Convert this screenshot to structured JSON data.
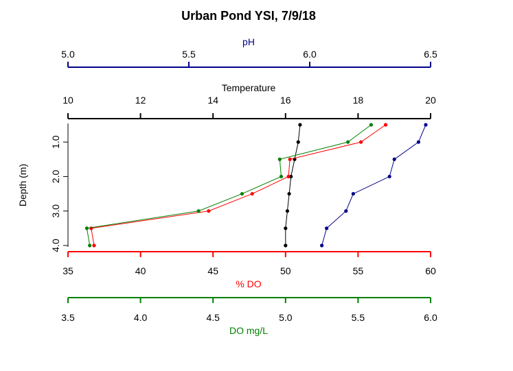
{
  "chart_data": {
    "type": "line",
    "title": "Urban Pond YSI, 7/9/18",
    "ylabel": "Depth (m)",
    "ylim": [
      4.0,
      0.5
    ],
    "y_ticks": [
      "1.0",
      "2.0",
      "3.0",
      "4.0"
    ],
    "axes": {
      "ph": {
        "label": "pH",
        "color": "#00008B",
        "position": "top",
        "range": [
          5.0,
          6.5
        ],
        "ticks": [
          5.0,
          5.5,
          6.0,
          6.5
        ],
        "tick_labels": [
          "5.0",
          "5.5",
          "6.0",
          "6.5"
        ]
      },
      "temperature": {
        "label": "Temperature",
        "color": "#000000",
        "position": "top",
        "range": [
          10,
          20
        ],
        "ticks": [
          10,
          12,
          14,
          16,
          18,
          20
        ],
        "tick_labels": [
          "10",
          "12",
          "14",
          "16",
          "18",
          "20"
        ]
      },
      "do_pct": {
        "label": "% DO",
        "color": "#FF0000",
        "position": "bottom",
        "range": [
          35,
          60
        ],
        "ticks": [
          35,
          40,
          45,
          50,
          55,
          60
        ],
        "tick_labels": [
          "35",
          "40",
          "45",
          "50",
          "55",
          "60"
        ]
      },
      "do_mgl": {
        "label": "DO mg/L",
        "color": "#008000",
        "position": "bottom",
        "range": [
          3.5,
          6.0
        ],
        "ticks": [
          3.5,
          4.0,
          4.5,
          5.0,
          5.5,
          6.0
        ],
        "tick_labels": [
          "3.5",
          "4.0",
          "4.5",
          "5.0",
          "5.5",
          "6.0"
        ]
      }
    },
    "series": [
      {
        "axis": "temperature",
        "color": "#000000",
        "points": [
          [
            16.4,
            0.5
          ],
          [
            16.35,
            1.0
          ],
          [
            16.25,
            1.5
          ],
          [
            16.15,
            2.0
          ],
          [
            16.1,
            2.5
          ],
          [
            16.05,
            3.0
          ],
          [
            16.0,
            3.5
          ],
          [
            16.0,
            4.0
          ]
        ]
      },
      {
        "axis": "do_pct",
        "color": "#FF0000",
        "points": [
          [
            56.9,
            0.5
          ],
          [
            55.2,
            1.0
          ],
          [
            50.3,
            1.5
          ],
          [
            50.2,
            2.0
          ],
          [
            47.7,
            2.5
          ],
          [
            44.7,
            3.0
          ],
          [
            36.6,
            3.5
          ],
          [
            36.8,
            4.0
          ]
        ]
      },
      {
        "axis": "do_mgl",
        "color": "#008000",
        "points": [
          [
            5.59,
            0.5
          ],
          [
            5.43,
            1.0
          ],
          [
            4.96,
            1.5
          ],
          [
            4.97,
            2.0
          ],
          [
            4.7,
            2.5
          ],
          [
            4.4,
            3.0
          ],
          [
            3.63,
            3.5
          ],
          [
            3.65,
            4.0
          ]
        ]
      },
      {
        "axis": "ph",
        "color": "#00008B",
        "points": [
          [
            6.48,
            0.5
          ],
          [
            6.45,
            1.0
          ],
          [
            6.35,
            1.5
          ],
          [
            6.33,
            2.0
          ],
          [
            6.18,
            2.5
          ],
          [
            6.15,
            3.0
          ],
          [
            6.07,
            3.5
          ],
          [
            6.05,
            4.0
          ]
        ]
      }
    ]
  }
}
